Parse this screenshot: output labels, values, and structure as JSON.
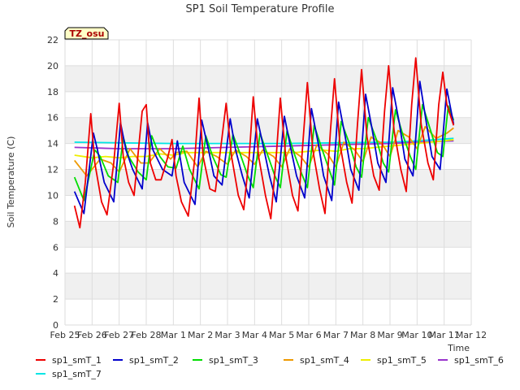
{
  "chart_data": {
    "type": "line",
    "title": "SP1 Soil Temperature Profile",
    "xlabel": "Time",
    "ylabel": "Soil Temperature (C)",
    "annotation": "TZ_osu",
    "x_ticks": [
      "Feb 25",
      "Feb 26",
      "Feb 27",
      "Feb 28",
      "Mar 1",
      "Mar 2",
      "Mar 3",
      "Mar 4",
      "Mar 5",
      "Mar 6",
      "Mar 7",
      "Mar 8",
      "Mar 9",
      "Mar 10",
      "Mar 11",
      "Mar 12"
    ],
    "xlim": [
      0,
      15
    ],
    "ylim": [
      0,
      22
    ],
    "y_ticks": [
      0,
      2,
      4,
      6,
      8,
      10,
      12,
      14,
      16,
      18,
      20,
      22
    ],
    "grid": true,
    "legend_position": "bottom",
    "series": [
      {
        "name": "sp1_smT_1",
        "color": "#ee0000",
        "x": [
          0.35,
          0.55,
          0.75,
          0.95,
          1.1,
          1.35,
          1.55,
          1.8,
          2.0,
          2.15,
          2.35,
          2.55,
          2.85,
          3.0,
          3.15,
          3.35,
          3.55,
          3.8,
          3.95,
          4.1,
          4.3,
          4.55,
          4.8,
          4.95,
          5.1,
          5.35,
          5.55,
          5.8,
          5.95,
          6.15,
          6.4,
          6.6,
          6.8,
          6.95,
          7.15,
          7.4,
          7.6,
          7.8,
          7.95,
          8.15,
          8.4,
          8.6,
          8.8,
          8.95,
          9.15,
          9.4,
          9.6,
          9.8,
          9.95,
          10.15,
          10.4,
          10.6,
          10.8,
          10.95,
          11.15,
          11.4,
          11.6,
          11.8,
          11.95,
          12.15,
          12.4,
          12.6,
          12.8,
          12.95,
          13.15,
          13.4,
          13.6,
          13.8,
          13.95,
          14.1,
          14.35
        ],
        "y": [
          9.2,
          7.5,
          11.0,
          16.3,
          12.5,
          9.5,
          8.5,
          12.5,
          17.1,
          13.0,
          11.0,
          10.0,
          16.5,
          17.0,
          12.5,
          11.2,
          11.2,
          13.0,
          14.3,
          11.5,
          9.5,
          8.4,
          13.0,
          17.5,
          13.0,
          10.5,
          10.3,
          14.5,
          17.1,
          13.0,
          10.0,
          8.9,
          13.0,
          17.6,
          13.0,
          10.0,
          8.2,
          13.0,
          17.5,
          13.0,
          10.0,
          8.8,
          14.5,
          18.7,
          13.5,
          10.5,
          8.6,
          15.0,
          19.0,
          14.0,
          11.0,
          9.4,
          15.5,
          19.7,
          14.5,
          11.5,
          10.4,
          16.5,
          20.0,
          15.0,
          12.0,
          10.3,
          17.0,
          20.6,
          15.5,
          12.5,
          11.2,
          17.0,
          19.5,
          17.0,
          15.4
        ]
      },
      {
        "name": "sp1_smT_2",
        "color": "#0000cc",
        "x": [
          0.35,
          0.7,
          1.05,
          1.2,
          1.45,
          1.8,
          2.05,
          2.25,
          2.5,
          2.85,
          3.05,
          3.25,
          3.6,
          3.95,
          4.15,
          4.4,
          4.8,
          5.05,
          5.3,
          5.5,
          5.8,
          6.1,
          6.3,
          6.55,
          6.8,
          7.1,
          7.35,
          7.55,
          7.8,
          8.1,
          8.35,
          8.55,
          8.85,
          9.1,
          9.35,
          9.55,
          9.85,
          10.1,
          10.35,
          10.55,
          10.85,
          11.1,
          11.35,
          11.55,
          11.85,
          12.1,
          12.35,
          12.55,
          12.85,
          13.1,
          13.35,
          13.55,
          13.85,
          14.1,
          14.35
        ],
        "y": [
          10.3,
          8.6,
          14.8,
          13.5,
          11.0,
          9.5,
          15.6,
          13.5,
          12.0,
          10.5,
          15.6,
          13.5,
          12.0,
          11.5,
          14.2,
          11.0,
          9.3,
          15.8,
          13.5,
          11.5,
          10.8,
          15.9,
          13.5,
          11.5,
          9.8,
          15.9,
          13.5,
          11.5,
          9.5,
          16.1,
          13.5,
          11.5,
          9.8,
          16.7,
          14.0,
          11.5,
          9.6,
          17.2,
          14.5,
          12.0,
          10.4,
          17.8,
          15.0,
          12.5,
          11.0,
          18.3,
          15.5,
          12.8,
          11.5,
          18.8,
          15.5,
          13.0,
          12.0,
          18.2,
          15.5
        ]
      },
      {
        "name": "sp1_smT_3",
        "color": "#00dd00",
        "x": [
          0.35,
          0.7,
          1.1,
          1.3,
          1.6,
          1.95,
          2.15,
          2.35,
          2.7,
          3.0,
          3.2,
          3.5,
          3.8,
          4.1,
          4.35,
          4.6,
          4.95,
          5.2,
          5.45,
          5.75,
          5.95,
          6.2,
          6.5,
          6.75,
          6.95,
          7.2,
          7.5,
          7.75,
          7.95,
          8.2,
          8.5,
          8.75,
          8.95,
          9.2,
          9.5,
          9.75,
          9.95,
          10.2,
          10.5,
          10.75,
          10.95,
          11.2,
          11.5,
          11.75,
          11.95,
          12.2,
          12.5,
          12.75,
          12.95,
          13.2,
          13.5,
          13.75,
          13.95,
          14.15,
          14.35
        ],
        "y": [
          11.4,
          9.6,
          13.5,
          13.0,
          11.5,
          11.0,
          14.5,
          13.0,
          11.8,
          11.2,
          14.6,
          13.0,
          12.2,
          12.1,
          13.8,
          12.0,
          10.5,
          14.6,
          13.0,
          11.6,
          11.4,
          14.7,
          13.0,
          11.5,
          10.6,
          14.8,
          13.0,
          11.5,
          10.6,
          15.0,
          13.0,
          11.6,
          10.6,
          15.4,
          13.5,
          12.0,
          10.8,
          15.7,
          14.0,
          12.2,
          11.4,
          16.0,
          14.3,
          12.5,
          11.8,
          16.6,
          14.5,
          13.0,
          12.0,
          17.0,
          15.0,
          13.3,
          13.0,
          16.9,
          15.8
        ]
      },
      {
        "name": "sp1_smT_4",
        "color": "#ee9900",
        "x": [
          0.35,
          0.8,
          1.3,
          1.7,
          2.0,
          2.4,
          2.8,
          3.1,
          3.5,
          3.9,
          4.1,
          4.5,
          4.9,
          5.2,
          5.6,
          6.0,
          6.3,
          6.7,
          7.0,
          7.3,
          7.7,
          8.0,
          8.3,
          8.7,
          9.0,
          9.3,
          9.7,
          10.0,
          10.3,
          10.7,
          11.0,
          11.3,
          11.7,
          12.0,
          12.3,
          12.7,
          13.0,
          13.3,
          13.7,
          14.1,
          14.35
        ],
        "y": [
          12.7,
          11.5,
          12.8,
          12.5,
          11.8,
          13.6,
          12.5,
          12.5,
          13.6,
          12.8,
          13.3,
          13.4,
          12.2,
          13.4,
          13.0,
          12.4,
          13.5,
          13.0,
          12.4,
          13.5,
          13.0,
          12.2,
          13.6,
          13.0,
          12.2,
          13.9,
          13.2,
          12.2,
          14.1,
          13.5,
          12.6,
          14.5,
          14.0,
          13.0,
          15.0,
          14.5,
          13.6,
          15.3,
          14.4,
          14.8,
          15.2
        ]
      },
      {
        "name": "sp1_smT_5",
        "color": "#eeee00",
        "x": [
          0.35,
          1.0,
          1.5,
          2.0,
          2.5,
          3.0,
          3.5,
          4.0,
          4.5,
          5.0,
          5.5,
          6.0,
          6.5,
          7.0,
          7.5,
          8.0,
          8.5,
          9.0,
          9.5,
          10.0,
          10.5,
          11.0,
          11.5,
          12.0,
          12.5,
          13.0,
          13.5,
          14.0,
          14.35
        ],
        "y": [
          13.1,
          12.9,
          13.0,
          12.9,
          13.0,
          13.0,
          13.2,
          13.1,
          13.3,
          13.3,
          13.3,
          13.3,
          13.3,
          13.3,
          13.3,
          13.3,
          13.3,
          13.4,
          13.5,
          13.4,
          13.6,
          13.6,
          13.7,
          13.8,
          13.9,
          14.0,
          14.1,
          14.2,
          14.3
        ]
      },
      {
        "name": "sp1_smT_6",
        "color": "#9933cc",
        "x": [
          0.35,
          2.0,
          4.0,
          6.0,
          8.0,
          10.0,
          12.0,
          13.0,
          14.35
        ],
        "y": [
          13.7,
          13.6,
          13.6,
          13.7,
          13.8,
          13.9,
          14.0,
          14.1,
          14.2
        ]
      },
      {
        "name": "sp1_smT_7",
        "color": "#00e5e5",
        "x": [
          0.35,
          2.0,
          4.0,
          6.0,
          8.0,
          10.0,
          12.0,
          13.0,
          14.35
        ],
        "y": [
          14.1,
          14.05,
          14.0,
          14.0,
          14.0,
          14.05,
          14.1,
          14.2,
          14.4
        ]
      }
    ]
  }
}
